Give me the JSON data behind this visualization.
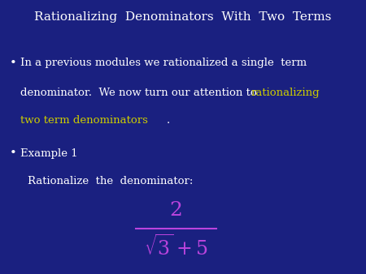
{
  "title": "Rationalizing  Denominators  With  Two  Terms",
  "title_color": "#ffffff",
  "title_fontsize": 11,
  "bg_color": "#1a2080",
  "header_bg": "#1a1e7a",
  "separator_color": "#8888cc",
  "highlight_color": "#cccc00",
  "bullet2": "Example 1",
  "subtext": "Rationalize  the  denominator:",
  "text_color": "#ffffff",
  "math_color": "#bb44dd",
  "body_fontsize": 9.5,
  "bullet_fontsize": 10
}
